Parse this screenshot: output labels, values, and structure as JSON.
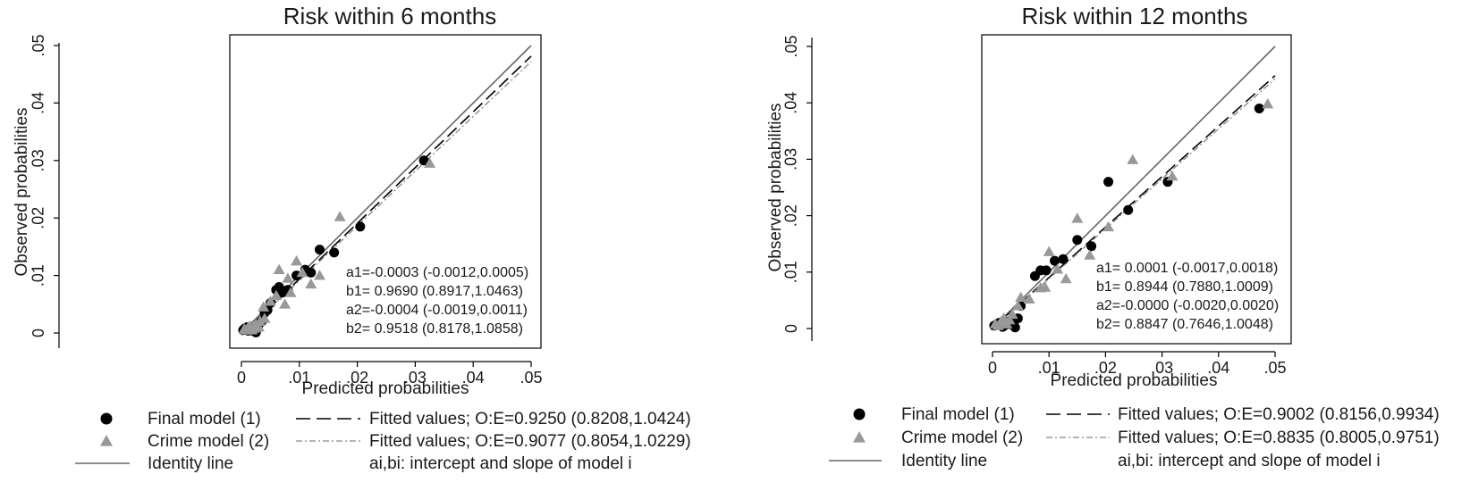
{
  "chart_data": [
    {
      "type": "scatter",
      "title": "Risk within 6 months",
      "xlabel": "Predicted probabilities",
      "ylabel": "Observed probabilities",
      "xlim": [
        0,
        0.05
      ],
      "ylim": [
        0,
        0.05
      ],
      "x_ticks": [
        0,
        0.01,
        0.02,
        0.03,
        0.04,
        0.05
      ],
      "x_tick_labels": [
        "0",
        ".01",
        ".02",
        ".03",
        ".04",
        ".05"
      ],
      "y_ticks": [
        0,
        0.01,
        0.02,
        0.03,
        0.04,
        0.05
      ],
      "y_tick_labels": [
        "0",
        ".01",
        ".02",
        ".03",
        ".04",
        ".05"
      ],
      "grid": false,
      "legend_position": "bottom",
      "colors": {
        "final": "#000000",
        "crime": "#999999",
        "identity": "#666666",
        "fit_final": "#000000",
        "fit_crime": "#888888"
      },
      "series": [
        {
          "name": "Final model (1)",
          "marker": "circle",
          "x": [
            0.0003,
            0.0006,
            0.0008,
            0.001,
            0.0012,
            0.0015,
            0.0018,
            0.002,
            0.0022,
            0.0025,
            0.0028,
            0.003,
            0.0035,
            0.004,
            0.0045,
            0.005,
            0.006,
            0.0065,
            0.007,
            0.008,
            0.0095,
            0.011,
            0.012,
            0.0135,
            0.016,
            0.0205,
            0.0315
          ],
          "y": [
            0.0005,
            0.0008,
            0.0006,
            0.001,
            0.0004,
            0.0009,
            0.0007,
            0.0005,
            0.0003,
            0.0001,
            0.001,
            0.0015,
            0.002,
            0.0035,
            0.004,
            0.0052,
            0.0075,
            0.008,
            0.007,
            0.0075,
            0.01,
            0.011,
            0.0105,
            0.0145,
            0.014,
            0.0185,
            0.03
          ]
        },
        {
          "name": "Crime model (2)",
          "marker": "triangle",
          "x": [
            0.0005,
            0.0008,
            0.0012,
            0.0015,
            0.0018,
            0.0022,
            0.0025,
            0.003,
            0.0032,
            0.0038,
            0.004,
            0.005,
            0.006,
            0.0065,
            0.0075,
            0.008,
            0.0085,
            0.0095,
            0.0105,
            0.012,
            0.0135,
            0.017,
            0.0325
          ],
          "y": [
            0.0007,
            0.0005,
            0.001,
            0.0012,
            0.0005,
            0.0008,
            0.0015,
            0.001,
            0.002,
            0.0045,
            0.0025,
            0.0055,
            0.0065,
            0.011,
            0.005,
            0.0095,
            0.007,
            0.0125,
            0.0105,
            0.0085,
            0.01,
            0.0202,
            0.0295
          ]
        },
        {
          "name": "Identity line",
          "line": "solid",
          "x": [
            0,
            0.05
          ],
          "y": [
            0,
            0.05
          ]
        },
        {
          "name": "Fitted values; O:E=0.9250 (0.8208,1.0424)",
          "line": "longdash",
          "x": [
            0,
            0.05
          ],
          "y": [
            -0.0003,
            0.04815
          ]
        },
        {
          "name": "Fitted values; O:E=0.9077 (0.8054,1.0229)",
          "line": "dashdot",
          "x": [
            0,
            0.05
          ],
          "y": [
            -0.0004,
            0.04719
          ]
        }
      ],
      "legend": [
        {
          "label": "Final model (1)",
          "symbol": "circle"
        },
        {
          "label": "Fitted values; O:E=0.9250 (0.8208,1.0424)",
          "symbol": "longdash"
        },
        {
          "label": "Crime model (2)",
          "symbol": "triangle"
        },
        {
          "label": "Fitted values; O:E=0.9077 (0.8054,1.0229)",
          "symbol": "dashdot"
        },
        {
          "label": "Identity line",
          "symbol": "solid"
        },
        {
          "label": "ai,bi: intercept and slope of model i",
          "symbol": "none"
        }
      ],
      "annotations": [
        "a1=-0.0003 (-0.0012,0.0005)",
        "b1= 0.9690 (0.8917,1.0463)",
        "a2=-0.0004 (-0.0019,0.0011)",
        "b2= 0.9518 (0.8178,1.0858)"
      ]
    },
    {
      "type": "scatter",
      "title": "Risk within 12 months",
      "xlabel": "Predicted probabilities",
      "ylabel": "Observed probabilities",
      "xlim": [
        0,
        0.05
      ],
      "ylim": [
        0,
        0.05
      ],
      "x_ticks": [
        0,
        0.01,
        0.02,
        0.03,
        0.04,
        0.05
      ],
      "x_tick_labels": [
        "0",
        ".01",
        ".02",
        ".03",
        ".04",
        ".05"
      ],
      "y_ticks": [
        0,
        0.01,
        0.02,
        0.03,
        0.04,
        0.05
      ],
      "y_tick_labels": [
        "0",
        ".01",
        ".02",
        ".03",
        ".04",
        ".05"
      ],
      "grid": false,
      "legend_position": "bottom",
      "colors": {
        "final": "#000000",
        "crime": "#999999",
        "identity": "#666666",
        "fit_final": "#000000",
        "fit_crime": "#888888"
      },
      "series": [
        {
          "name": "Final model (1)",
          "marker": "circle",
          "x": [
            0.0003,
            0.0008,
            0.0012,
            0.0018,
            0.0022,
            0.0025,
            0.003,
            0.0035,
            0.004,
            0.0045,
            0.005,
            0.0075,
            0.0085,
            0.0095,
            0.011,
            0.0125,
            0.015,
            0.0175,
            0.0205,
            0.024,
            0.031,
            0.0472
          ],
          "y": [
            0.0005,
            0.0008,
            0.001,
            0.0003,
            0.0006,
            0.0012,
            0.0008,
            0.0015,
            0.0002,
            0.0018,
            0.004,
            0.0093,
            0.0103,
            0.0103,
            0.012,
            0.0123,
            0.0157,
            0.0146,
            0.026,
            0.021,
            0.026,
            0.039
          ]
        },
        {
          "name": "Crime model (2)",
          "marker": "triangle",
          "x": [
            0.0005,
            0.001,
            0.0015,
            0.002,
            0.0025,
            0.003,
            0.0035,
            0.0045,
            0.005,
            0.0065,
            0.0085,
            0.0093,
            0.01,
            0.0115,
            0.013,
            0.015,
            0.0172,
            0.0205,
            0.0248,
            0.0318,
            0.0487
          ],
          "y": [
            0.0008,
            0.0005,
            0.0012,
            0.0018,
            0.0008,
            0.0015,
            0.0025,
            0.004,
            0.0055,
            0.0052,
            0.0072,
            0.0073,
            0.0136,
            0.0105,
            0.0088,
            0.0195,
            0.013,
            0.018,
            0.0299,
            0.027,
            0.0398
          ]
        },
        {
          "name": "Identity line",
          "line": "solid",
          "x": [
            0,
            0.05
          ],
          "y": [
            0,
            0.05
          ]
        },
        {
          "name": "Fitted values; O:E=0.9002 (0.8156,0.9934)",
          "line": "longdash",
          "x": [
            0,
            0.05
          ],
          "y": [
            0.0001,
            0.04482
          ]
        },
        {
          "name": "Fitted values; O:E=0.8835 (0.8005,0.9751)",
          "line": "dashdot",
          "x": [
            0,
            0.05
          ],
          "y": [
            0.0,
            0.044235
          ]
        }
      ],
      "legend": [
        {
          "label": "Final model (1)",
          "symbol": "circle"
        },
        {
          "label": "Fitted values; O:E=0.9002 (0.8156,0.9934)",
          "symbol": "longdash"
        },
        {
          "label": "Crime model (2)",
          "symbol": "triangle"
        },
        {
          "label": "Fitted values; O:E=0.8835 (0.8005,0.9751)",
          "symbol": "dashdot"
        },
        {
          "label": "Identity line",
          "symbol": "solid"
        },
        {
          "label": "ai,bi: intercept and slope of model i",
          "symbol": "none"
        }
      ],
      "annotations": [
        "a1= 0.0001 (-0.0017,0.0018)",
        "b1= 0.8944 (0.7880,1.0009)",
        "a2=-0.0000 (-0.0020,0.0020)",
        "b2= 0.8847 (0.7646,1.0048)"
      ]
    }
  ]
}
